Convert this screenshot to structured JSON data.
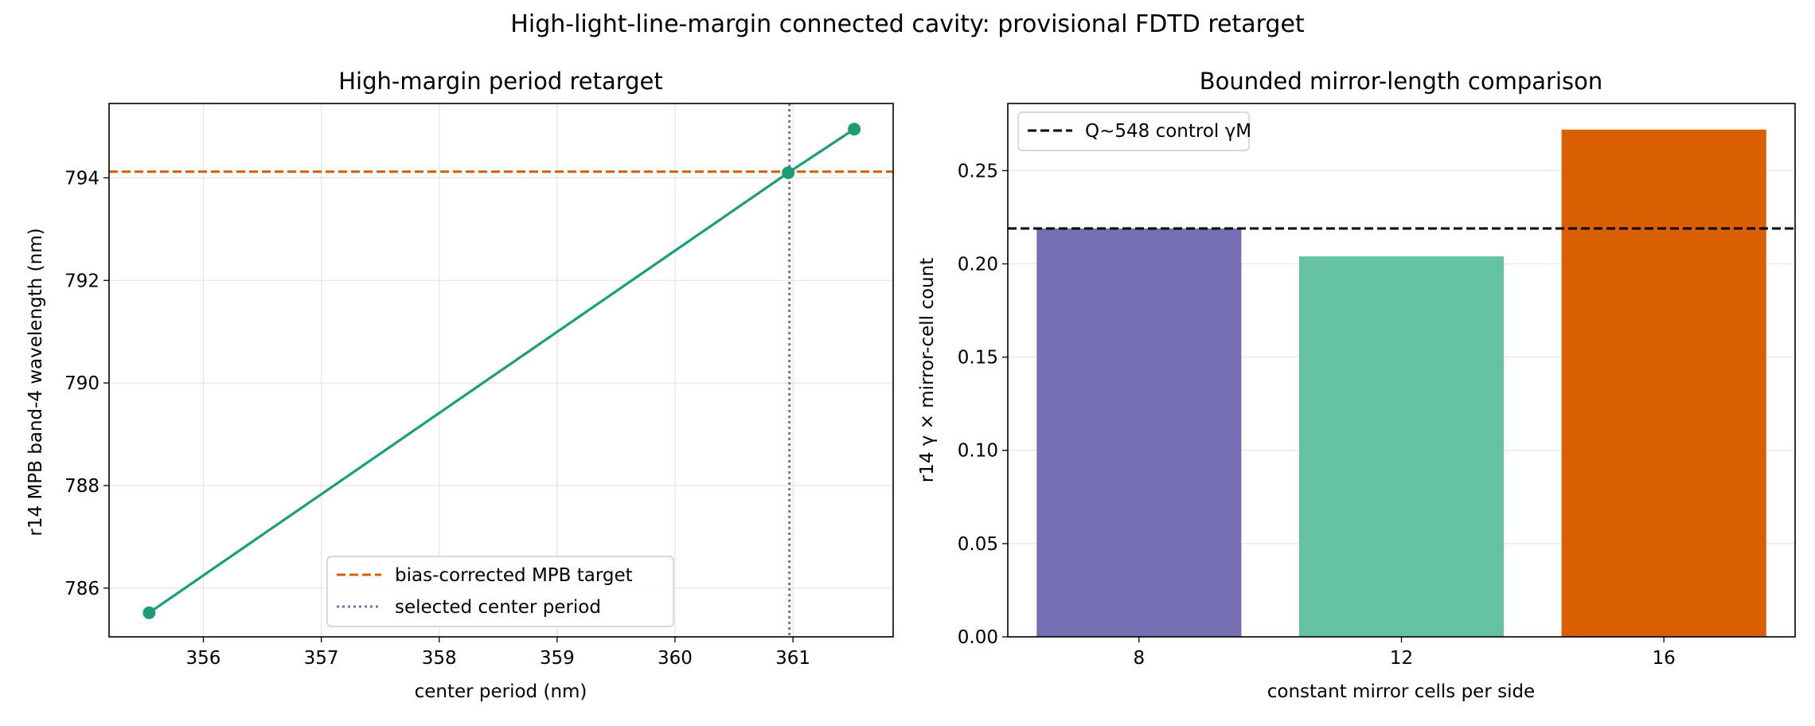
{
  "figure": {
    "suptitle": "High-light-line-margin connected cavity: provisional FDTD retarget"
  },
  "chart_data": [
    {
      "type": "line",
      "title": "High-margin period retarget",
      "xlabel": "center period (nm)",
      "ylabel": "r14 MPB band-4 wavelength (nm)",
      "xlim": [
        355.2,
        361.85
      ],
      "ylim": [
        785.05,
        795.45
      ],
      "xticks": [
        356,
        357,
        358,
        359,
        360,
        361
      ],
      "yticks": [
        786,
        788,
        790,
        792,
        794
      ],
      "grid": true,
      "series": [
        {
          "name": "",
          "color": "#1b9e77",
          "points": [
            [
              355.54,
              785.52
            ],
            [
              360.96,
              794.1
            ],
            [
              361.52,
              794.95
            ]
          ]
        }
      ],
      "hline": {
        "y": 794.12,
        "label": "bias-corrected MPB target",
        "color": "#d95f02",
        "style": "dashed"
      },
      "vline": {
        "x": 360.97,
        "label": "selected center period",
        "color": "#7570b3",
        "style": "dotted"
      },
      "legend_loc": "lower center"
    },
    {
      "type": "bar",
      "title": "Bounded mirror-length comparison",
      "xlabel": "constant mirror cells per side",
      "ylabel": "r14 γ × mirror-cell count",
      "categories": [
        "8",
        "12",
        "16"
      ],
      "values": [
        0.219,
        0.204,
        0.272
      ],
      "colors": [
        "#7570b3",
        "#66c2a5",
        "#d95f02"
      ],
      "ylim": [
        0,
        0.286
      ],
      "yticks": [
        "0.00",
        "0.05",
        "0.10",
        "0.15",
        "0.20",
        "0.25"
      ],
      "grid": true,
      "hline": {
        "y": 0.219,
        "label": "Q~548 control γM",
        "color": "#000000",
        "style": "dashed"
      },
      "legend_loc": "upper left"
    }
  ]
}
